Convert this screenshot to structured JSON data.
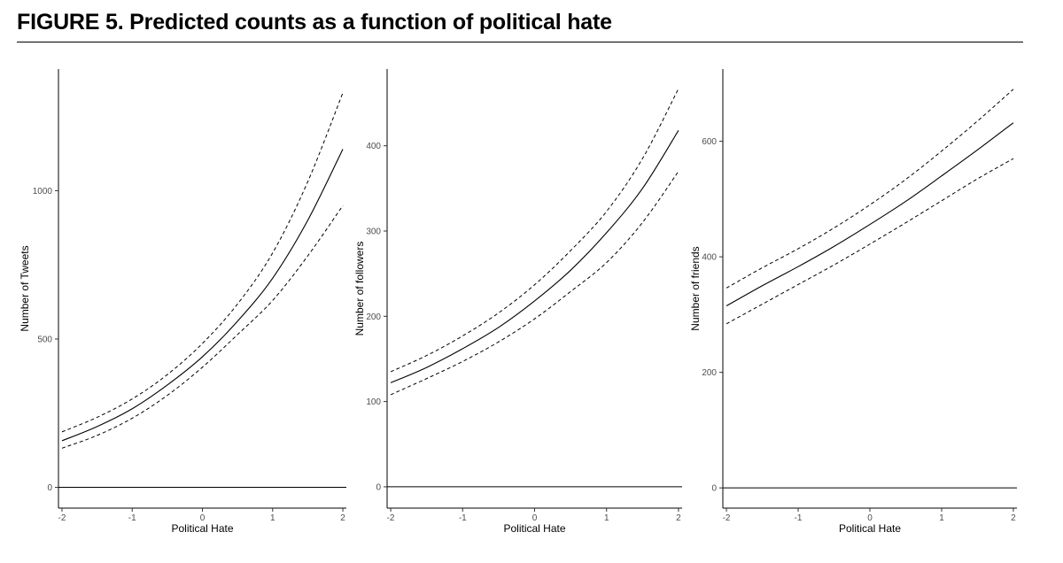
{
  "figure": {
    "title": "FIGURE 5. Predicted counts as a function of political hate"
  },
  "chart_data": [
    {
      "type": "line",
      "xlabel": "Political Hate",
      "ylabel": "Number of Tweets",
      "xlim": [
        -2.05,
        2.05
      ],
      "ylim": [
        -70,
        1410
      ],
      "xticks": [
        -2,
        -1,
        0,
        1,
        2
      ],
      "yticks": [
        0,
        500,
        1000
      ],
      "hline": 0,
      "grid": false,
      "x": [
        -2,
        -1.5,
        -1,
        -0.5,
        0,
        0.5,
        1,
        1.5,
        2
      ],
      "series": [
        {
          "name": "lower",
          "style": "dashed",
          "values": [
            132,
            175,
            233,
            310,
            405,
            515,
            630,
            780,
            950
          ]
        },
        {
          "name": "estimate",
          "style": "solid",
          "values": [
            157,
            205,
            265,
            345,
            440,
            560,
            705,
            900,
            1140
          ]
        },
        {
          "name": "upper",
          "style": "dashed",
          "values": [
            187,
            236,
            298,
            380,
            485,
            618,
            790,
            1030,
            1330
          ]
        }
      ]
    },
    {
      "type": "line",
      "xlabel": "Political Hate",
      "ylabel": "Number of followers",
      "xlim": [
        -2.05,
        2.05
      ],
      "ylim": [
        -25,
        490
      ],
      "xticks": [
        -2,
        -1,
        0,
        1,
        2
      ],
      "yticks": [
        0,
        100,
        200,
        300,
        400
      ],
      "hline": 0,
      "grid": false,
      "x": [
        -2,
        -1.5,
        -1,
        -0.5,
        0,
        0.5,
        1,
        1.5,
        2
      ],
      "series": [
        {
          "name": "lower",
          "style": "dashed",
          "values": [
            108,
            127,
            147,
            170,
            197,
            229,
            263,
            310,
            370
          ]
        },
        {
          "name": "estimate",
          "style": "solid",
          "values": [
            122,
            140,
            162,
            187,
            218,
            254,
            298,
            350,
            418
          ]
        },
        {
          "name": "upper",
          "style": "dashed",
          "values": [
            135,
            154,
            177,
            204,
            237,
            277,
            323,
            385,
            467
          ]
        }
      ]
    },
    {
      "type": "line",
      "xlabel": "Political Hate",
      "ylabel": "Number of friends",
      "xlim": [
        -2.05,
        2.05
      ],
      "ylim": [
        -35,
        725
      ],
      "xticks": [
        -2,
        -1,
        0,
        1,
        2
      ],
      "yticks": [
        0,
        200,
        400,
        600
      ],
      "hline": 0,
      "grid": false,
      "x": [
        -2,
        -1.5,
        -1,
        -0.5,
        0,
        0.5,
        1,
        1.5,
        2
      ],
      "series": [
        {
          "name": "lower",
          "style": "dashed",
          "values": [
            284,
            318,
            352,
            386,
            422,
            459,
            497,
            535,
            570
          ]
        },
        {
          "name": "estimate",
          "style": "solid",
          "values": [
            315,
            350,
            383,
            418,
            456,
            496,
            540,
            585,
            632
          ]
        },
        {
          "name": "upper",
          "style": "dashed",
          "values": [
            346,
            381,
            414,
            450,
            490,
            534,
            583,
            635,
            690
          ]
        }
      ]
    }
  ]
}
